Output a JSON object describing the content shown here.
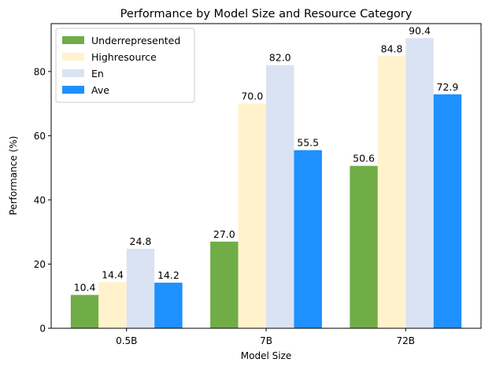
{
  "chart_data": {
    "type": "bar",
    "title": "Performance by Model Size and Resource Category",
    "xlabel": "Model Size",
    "ylabel": "Performance (%)",
    "categories": [
      "0.5B",
      "7B",
      "72B"
    ],
    "series": [
      {
        "name": "Underrepresented",
        "values": [
          10.4,
          27.0,
          50.6
        ],
        "color": "#70ad47"
      },
      {
        "name": "Highresource",
        "values": [
          14.4,
          70.0,
          84.8
        ],
        "color": "#fff2cc"
      },
      {
        "name": "En",
        "values": [
          24.8,
          82.0,
          90.4
        ],
        "color": "#dae3f3"
      },
      {
        "name": "Ave",
        "values": [
          14.2,
          55.5,
          72.9
        ],
        "color": "#1e90ff"
      }
    ],
    "ylim": [
      0,
      94.92
    ],
    "yticks": [
      0,
      20,
      40,
      60,
      80
    ],
    "grid": false,
    "legend": "upper left"
  }
}
